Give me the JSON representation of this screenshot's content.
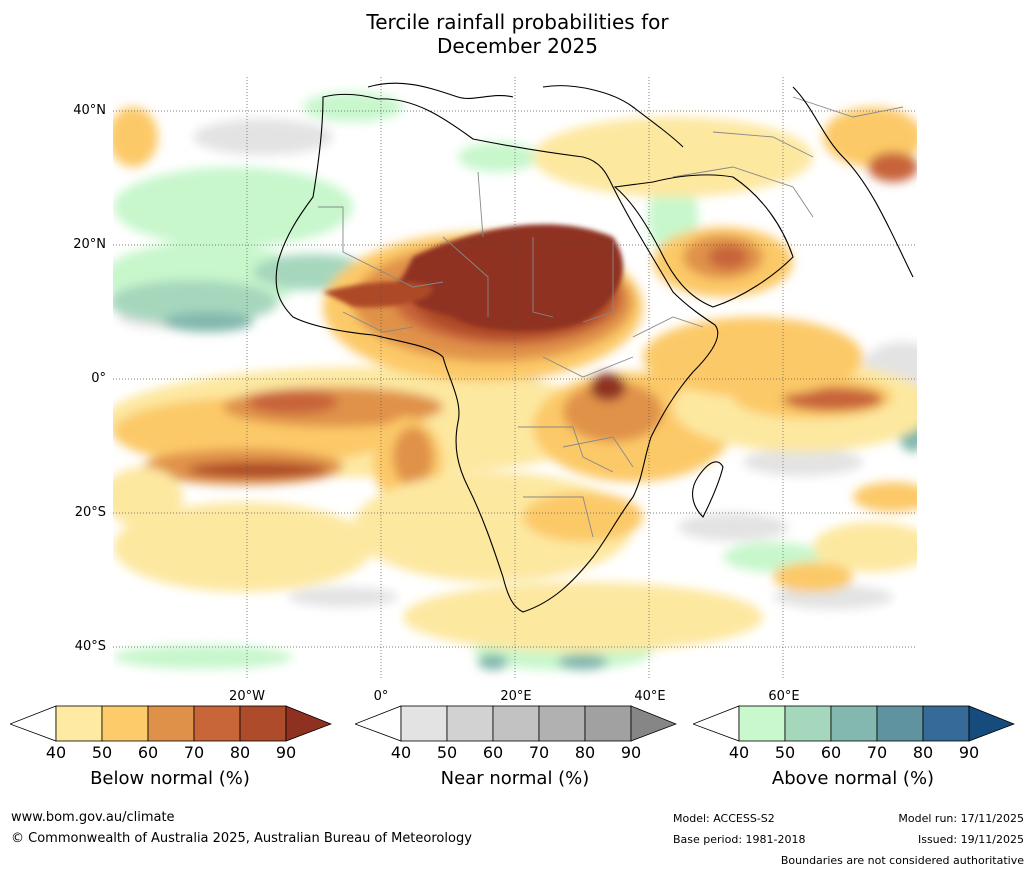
{
  "title": {
    "line1": "Tercile rainfall probabilities for",
    "line2": "December 2025"
  },
  "map": {
    "lat_labels": [
      "40°N",
      "20°N",
      "0°",
      "20°S",
      "40°S"
    ],
    "lon_labels": [
      "20°W",
      "0°",
      "20°E",
      "40°E",
      "60°E"
    ],
    "colors": {
      "ocean_white": "#ffffff",
      "below_40": "#fde8a0",
      "below_50": "#fcc968",
      "below_60": "#e0924a",
      "below_70": "#c8643a",
      "below_80": "#ad4a28",
      "below_90": "#8f3220",
      "near_40": "#e3e3e3",
      "near_50": "#d4d4d4",
      "above_40": "#c8f7cc",
      "above_50": "#a6d7bd",
      "above_60": "#82b8ad",
      "above_70": "#5e93a1",
      "above_80": "#356a99",
      "above_90": "#1a4a7a"
    }
  },
  "colorbars": [
    {
      "label": "Below normal (%)",
      "ticks": [
        "40",
        "50",
        "60",
        "70",
        "80",
        "90"
      ],
      "colors": [
        "#ffffff",
        "#feeaa3",
        "#fecb6a",
        "#df9049",
        "#c8663a",
        "#ad4b2a",
        "#8f3120"
      ]
    },
    {
      "label": "Near normal (%)",
      "ticks": [
        "40",
        "50",
        "60",
        "70",
        "80",
        "90"
      ],
      "colors": [
        "#ffffff",
        "#e3e3e3",
        "#d2d2d2",
        "#c2c2c2",
        "#b1b1b1",
        "#a1a1a1",
        "#868686"
      ]
    },
    {
      "label": "Above normal (%)",
      "ticks": [
        "40",
        "50",
        "60",
        "70",
        "80",
        "90"
      ],
      "colors": [
        "#ffffff",
        "#c9f8cc",
        "#a5d7bc",
        "#82b8ad",
        "#5f93a0",
        "#356a99",
        "#164b7d"
      ]
    }
  ],
  "footer": {
    "website": "www.bom.gov.au/climate",
    "copyright": "© Commonwealth of Australia 2025, Australian Bureau of Meteorology",
    "model": "Model: ACCESS-S2",
    "base_period": "Base period: 1981-2018",
    "model_run": "Model run: 17/11/2025",
    "issued": "Issued: 19/11/2025",
    "disclaimer": "Boundaries are not considered authoritative"
  }
}
